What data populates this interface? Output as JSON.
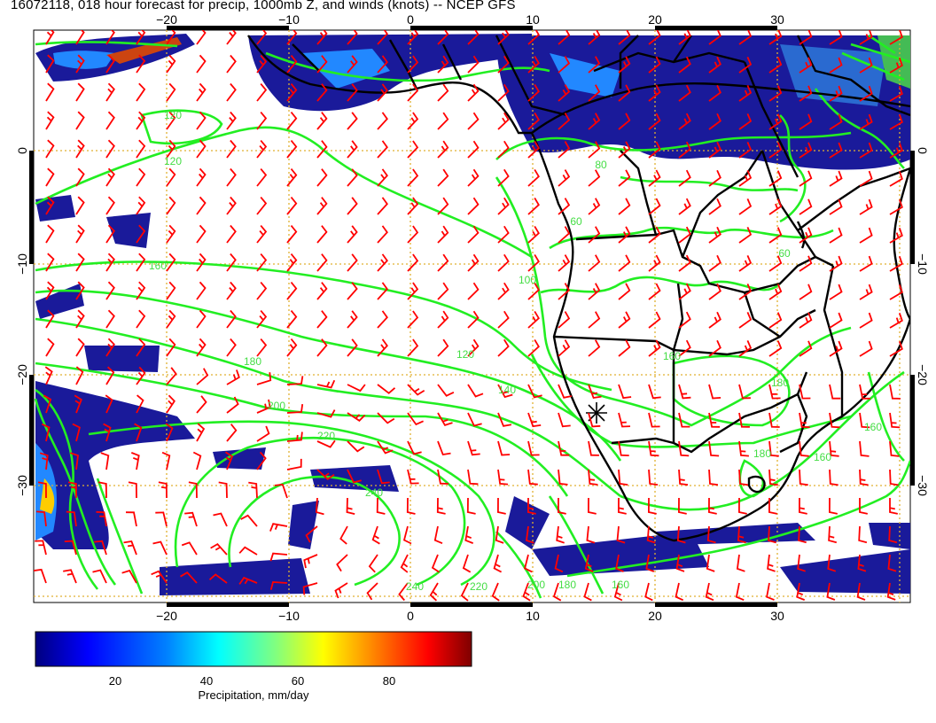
{
  "title": "16072118, 018 hour forecast for precip, 1000mb Z, and winds (knots) -- NCEP GFS",
  "map": {
    "lon_ticks": [
      "−20",
      "−10",
      "0",
      "10",
      "20",
      "30"
    ],
    "lat_ticks": [
      "0",
      "−10",
      "−20",
      "−30"
    ],
    "contour_labels": [
      "120",
      "120",
      "160",
      "180",
      "200",
      "220",
      "240",
      "240",
      "220",
      "200",
      "180",
      "160",
      "140",
      "120",
      "100",
      "160",
      "180",
      "180",
      "160",
      "80",
      "60",
      "60",
      "160"
    ],
    "colors": {
      "contour": "#22ee22",
      "wind_barb": "#ff0000",
      "coastline": "#000000",
      "grid": "#e0b030",
      "precip_low": "#1a1a9a",
      "precip_mid": "#2288ff",
      "precip_high": "#ffcc00"
    },
    "marker_icon": "station-star-icon"
  },
  "colorbar": {
    "ticks": [
      "20",
      "40",
      "60",
      "80"
    ],
    "label": "Precipitation, mm/day",
    "colors": [
      "#00007f",
      "#0000ff",
      "#0080ff",
      "#00ffff",
      "#80ff80",
      "#ffff00",
      "#ff8000",
      "#ff0000",
      "#7f0000"
    ]
  }
}
